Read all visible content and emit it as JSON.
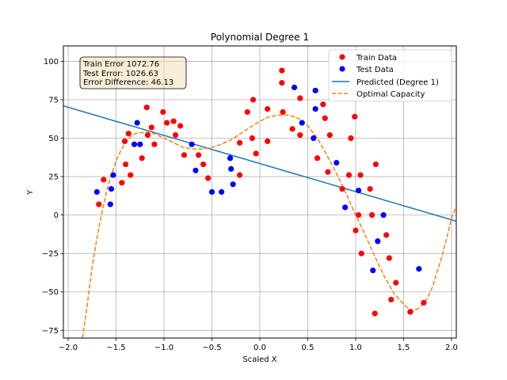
{
  "chart_data": {
    "type": "scatter",
    "title": "Polynomial Degree 1",
    "xlabel": "Scaled X",
    "ylabel": "Y",
    "xlim": [
      -2.05,
      2.05
    ],
    "ylim": [
      -80,
      110
    ],
    "grid": true,
    "xticks": [
      -2.0,
      -1.5,
      -1.0,
      -0.5,
      0.0,
      0.5,
      1.0,
      1.5,
      2.0
    ],
    "xtick_labels": [
      "−2.0",
      "−1.5",
      "−1.0",
      "−0.5",
      "0.0",
      "0.5",
      "1.0",
      "1.5",
      "2.0"
    ],
    "yticks": [
      -75,
      -50,
      -25,
      0,
      25,
      50,
      75,
      100
    ],
    "ytick_labels": [
      "−75",
      "−50",
      "−25",
      "0",
      "25",
      "50",
      "75",
      "100"
    ],
    "legend_position": "top-right",
    "annotation": {
      "train_error": "Train Error 1072.76",
      "test_error": "Test Error: 1026.63",
      "error_difference": "Error Difference: 46.13"
    },
    "series": [
      {
        "name": "Train Data",
        "kind": "scatter",
        "color": "#ff0000",
        "points": [
          [
            -1.68,
            7
          ],
          [
            -1.63,
            23
          ],
          [
            -1.44,
            21
          ],
          [
            -1.41,
            48
          ],
          [
            -1.4,
            33
          ],
          [
            -1.37,
            53
          ],
          [
            -1.35,
            26
          ],
          [
            -1.23,
            37
          ],
          [
            -1.18,
            70
          ],
          [
            -1.17,
            52
          ],
          [
            -1.13,
            57
          ],
          [
            -1.1,
            46
          ],
          [
            -1.01,
            67
          ],
          [
            -0.97,
            60
          ],
          [
            -0.9,
            61
          ],
          [
            -0.88,
            52
          ],
          [
            -0.83,
            58
          ],
          [
            -0.79,
            39
          ],
          [
            -0.64,
            39
          ],
          [
            -0.59,
            33
          ],
          [
            -0.54,
            24
          ],
          [
            -0.21,
            47
          ],
          [
            -0.21,
            26
          ],
          [
            -0.13,
            67
          ],
          [
            -0.08,
            50
          ],
          [
            -0.07,
            75
          ],
          [
            -0.04,
            40
          ],
          [
            0.08,
            48
          ],
          [
            0.08,
            69
          ],
          [
            0.23,
            94
          ],
          [
            0.23,
            86
          ],
          [
            0.24,
            67
          ],
          [
            0.34,
            56
          ],
          [
            0.42,
            76
          ],
          [
            0.42,
            52
          ],
          [
            0.6,
            37
          ],
          [
            0.66,
            72
          ],
          [
            0.68,
            63
          ],
          [
            0.71,
            28
          ],
          [
            0.73,
            52
          ],
          [
            0.86,
            17
          ],
          [
            0.93,
            26
          ],
          [
            0.95,
            50
          ],
          [
            0.99,
            64
          ],
          [
            1.0,
            -10
          ],
          [
            1.03,
            0
          ],
          [
            1.05,
            26
          ],
          [
            1.06,
            -25
          ],
          [
            1.15,
            17
          ],
          [
            1.17,
            0
          ],
          [
            1.2,
            -64
          ],
          [
            1.21,
            33
          ],
          [
            1.32,
            -13
          ],
          [
            1.35,
            -28
          ],
          [
            1.37,
            -55
          ],
          [
            1.42,
            -44
          ],
          [
            1.57,
            -63
          ],
          [
            1.71,
            -57
          ]
        ]
      },
      {
        "name": "Test Data",
        "kind": "scatter",
        "color": "#0000ff",
        "points": [
          [
            -1.7,
            15
          ],
          [
            -1.56,
            7
          ],
          [
            -1.55,
            17
          ],
          [
            -1.53,
            26
          ],
          [
            -1.31,
            46
          ],
          [
            -1.28,
            60
          ],
          [
            -1.25,
            46
          ],
          [
            -0.71,
            46
          ],
          [
            -0.67,
            29
          ],
          [
            -0.5,
            15
          ],
          [
            -0.4,
            15
          ],
          [
            -0.31,
            37
          ],
          [
            -0.3,
            30
          ],
          [
            -0.28,
            20
          ],
          [
            0.36,
            83
          ],
          [
            0.44,
            60
          ],
          [
            0.56,
            50
          ],
          [
            0.58,
            81
          ],
          [
            0.58,
            69
          ],
          [
            0.8,
            34
          ],
          [
            0.89,
            5
          ],
          [
            1.03,
            16
          ],
          [
            1.18,
            -36
          ],
          [
            1.23,
            -17
          ],
          [
            1.29,
            0
          ],
          [
            1.66,
            -35
          ]
        ]
      },
      {
        "name": "Predicted (Degree 1)",
        "kind": "line",
        "color": "#1f77b4",
        "x": [
          -2.05,
          2.05
        ],
        "y": [
          71,
          -4
        ]
      },
      {
        "name": "Optimal Capacity",
        "kind": "dashed-line",
        "color": "#ff7f0e",
        "x": [
          -1.85,
          -1.8,
          -1.75,
          -1.7,
          -1.65,
          -1.6,
          -1.55,
          -1.5,
          -1.45,
          -1.4,
          -1.35,
          -1.3,
          -1.2,
          -1.1,
          -1.0,
          -0.9,
          -0.8,
          -0.7,
          -0.6,
          -0.5,
          -0.4,
          -0.3,
          -0.2,
          -0.1,
          0.0,
          0.1,
          0.2,
          0.3,
          0.4,
          0.5,
          0.6,
          0.7,
          0.8,
          0.9,
          1.0,
          1.1,
          1.2,
          1.3,
          1.4,
          1.5,
          1.55,
          1.6,
          1.65,
          1.7,
          1.75,
          1.8,
          1.85,
          1.9,
          1.95,
          2.0,
          2.04
        ],
        "y": [
          -80,
          -58,
          -34,
          -15,
          1,
          15,
          26,
          35,
          42,
          47,
          51,
          53,
          54,
          53,
          50,
          47,
          44,
          43,
          43,
          44,
          46,
          49,
          53,
          57,
          61,
          64,
          65,
          65,
          63,
          58,
          50,
          39,
          27,
          14,
          0,
          -13,
          -27,
          -40,
          -51,
          -58,
          -61,
          -62,
          -61,
          -58,
          -54,
          -47,
          -37,
          -27,
          -15,
          -2,
          4
        ]
      }
    ]
  }
}
